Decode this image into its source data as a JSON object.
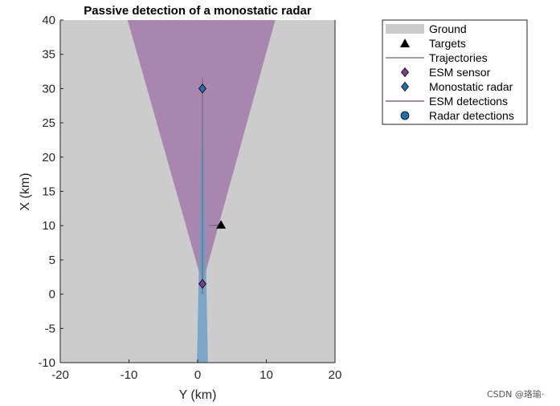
{
  "chart_data": {
    "type": "scatter",
    "title": "Passive detection of a monostatic radar",
    "xlabel": "Y (km)",
    "ylabel": "X (km)",
    "xlim": [
      -20,
      20
    ],
    "ylim": [
      -10,
      40
    ],
    "xticks": [
      -20,
      -10,
      0,
      10,
      20
    ],
    "yticks": [
      -10,
      -5,
      0,
      5,
      10,
      15,
      20,
      25,
      30,
      35,
      40
    ],
    "grid": false,
    "legend_position": "outside-right",
    "ground": {
      "color": "#cccccc"
    },
    "esm_coverage": {
      "color": "#9e6fa7",
      "polygon": [
        [
          0.7,
          1.5
        ],
        [
          -10.2,
          40
        ],
        [
          11.3,
          40
        ]
      ]
    },
    "radar_coverage": {
      "color": "#6c9fc7",
      "polygon": [
        [
          0.7,
          30
        ],
        [
          -0.1,
          -10
        ],
        [
          1.5,
          -10
        ]
      ]
    },
    "targets": {
      "color": "#000000",
      "points": [
        [
          3.4,
          10.1
        ]
      ]
    },
    "trajectories": {
      "color": "#666666",
      "lines": [
        [
          [
            1.7,
            10.0
          ],
          [
            3.4,
            10.1
          ]
        ],
        [
          [
            0.7,
            31.6
          ],
          [
            0.7,
            0.0
          ]
        ]
      ]
    },
    "esm_sensor": {
      "color": "#7b3c8c",
      "points": [
        [
          0.7,
          1.5
        ]
      ]
    },
    "monostatic_radar": {
      "color": "#1f6fad",
      "points": [
        [
          0.7,
          30.0
        ]
      ]
    },
    "esm_detections": {
      "color": "#7b3c8c",
      "lines": []
    },
    "radar_detections": {
      "color": "#1f6fad",
      "points": []
    },
    "legend": [
      {
        "label": "Ground",
        "symbol": "patch",
        "color": "#cccccc"
      },
      {
        "label": "Targets",
        "symbol": "triangle",
        "color": "#000000"
      },
      {
        "label": "Trajectories",
        "symbol": "line",
        "color": "#666666"
      },
      {
        "label": "ESM sensor",
        "symbol": "diamond",
        "color": "#7b3c8c"
      },
      {
        "label": "Monostatic radar",
        "symbol": "diamond",
        "color": "#1f6fad"
      },
      {
        "label": "ESM detections",
        "symbol": "line",
        "color": "#7b3c8c"
      },
      {
        "label": "Radar detections",
        "symbol": "circle",
        "color": "#1f6fad"
      }
    ]
  },
  "watermark": "CSDN @珞瑜·"
}
